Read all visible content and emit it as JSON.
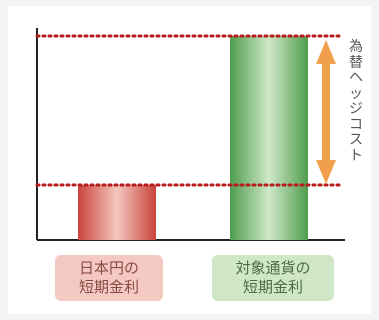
{
  "labels": {
    "jp_line1": "日本円の",
    "jp_line2": "短期金利",
    "target_line1": "対象通貨の",
    "target_line2": "短期金利",
    "hedge_cost": "為替ヘッジコスト"
  },
  "colors": {
    "jp_bar": "#d9534a",
    "target_bar": "#5cab5a",
    "dotted_line": "#b71c1c",
    "arrow": "#f0a04b"
  }
}
